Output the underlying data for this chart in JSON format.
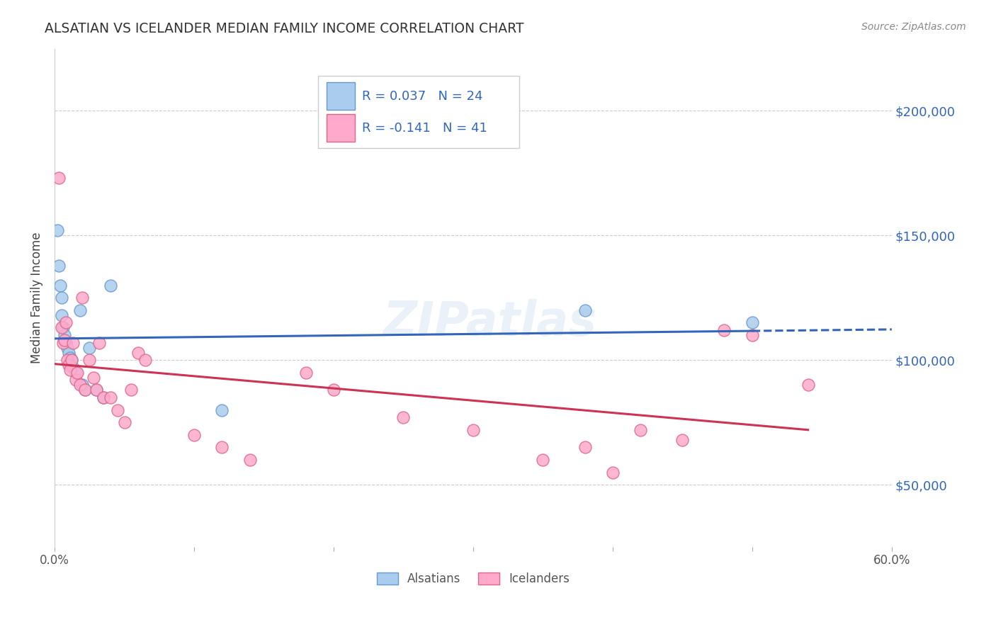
{
  "title": "ALSATIAN VS ICELANDER MEDIAN FAMILY INCOME CORRELATION CHART",
  "source": "Source: ZipAtlas.com",
  "ylabel": "Median Family Income",
  "xlim": [
    0.0,
    0.6
  ],
  "ylim": [
    25000,
    225000
  ],
  "yticks": [
    50000,
    100000,
    150000,
    200000
  ],
  "ytick_labels": [
    "$50,000",
    "$100,000",
    "$150,000",
    "$200,000"
  ],
  "xtick_positions": [
    0.0,
    0.1,
    0.2,
    0.3,
    0.4,
    0.5,
    0.6
  ],
  "xtick_labels": [
    "0.0%",
    "",
    "",
    "",
    "",
    "",
    "60.0%"
  ],
  "background_color": "#ffffff",
  "grid_color": "#cccccc",
  "watermark": "ZIPatlas",
  "alsatian_color": "#aaccee",
  "alsatian_edge_color": "#6699cc",
  "icelander_color": "#ffaacc",
  "icelander_edge_color": "#dd6688",
  "alsatian_line_color": "#3366bb",
  "icelander_line_color": "#cc3355",
  "alsatian_R": 0.037,
  "alsatian_N": 24,
  "icelander_R": -0.141,
  "icelander_N": 41,
  "alsatian_points_x": [
    0.002,
    0.003,
    0.004,
    0.005,
    0.005,
    0.006,
    0.007,
    0.008,
    0.009,
    0.01,
    0.011,
    0.012,
    0.013,
    0.015,
    0.018,
    0.02,
    0.022,
    0.025,
    0.03,
    0.035,
    0.04,
    0.12,
    0.38,
    0.5
  ],
  "alsatian_points_y": [
    152000,
    138000,
    130000,
    125000,
    118000,
    113000,
    110000,
    107000,
    105000,
    103000,
    101000,
    100000,
    97000,
    95000,
    120000,
    90000,
    88000,
    105000,
    88000,
    85000,
    130000,
    80000,
    120000,
    115000
  ],
  "icelander_points_x": [
    0.003,
    0.005,
    0.006,
    0.007,
    0.008,
    0.009,
    0.01,
    0.011,
    0.012,
    0.013,
    0.015,
    0.016,
    0.018,
    0.02,
    0.022,
    0.025,
    0.028,
    0.03,
    0.032,
    0.035,
    0.04,
    0.045,
    0.05,
    0.055,
    0.06,
    0.065,
    0.1,
    0.12,
    0.14,
    0.18,
    0.2,
    0.25,
    0.3,
    0.35,
    0.38,
    0.4,
    0.42,
    0.45,
    0.48,
    0.5,
    0.54
  ],
  "icelander_points_y": [
    173000,
    113000,
    107000,
    108000,
    115000,
    100000,
    98000,
    96000,
    100000,
    107000,
    92000,
    95000,
    90000,
    125000,
    88000,
    100000,
    93000,
    88000,
    107000,
    85000,
    85000,
    80000,
    75000,
    88000,
    103000,
    100000,
    70000,
    65000,
    60000,
    95000,
    88000,
    77000,
    72000,
    60000,
    65000,
    55000,
    72000,
    68000,
    112000,
    110000,
    90000
  ]
}
